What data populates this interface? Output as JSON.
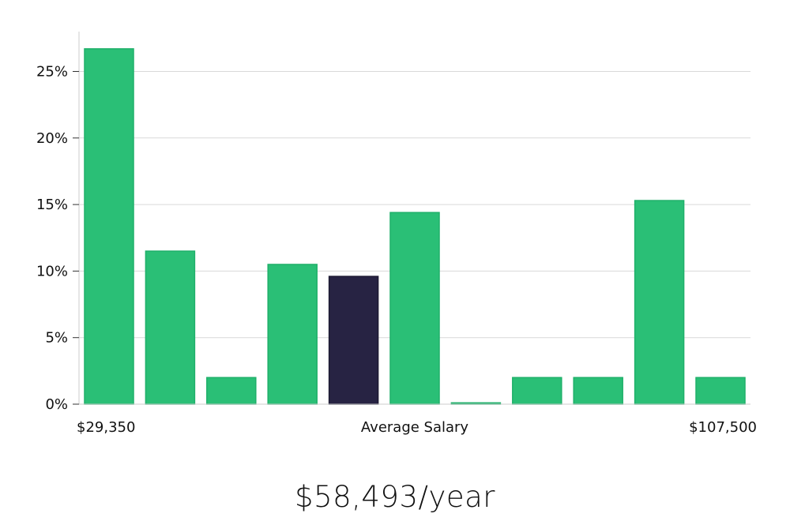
{
  "chart_data": {
    "type": "bar",
    "title": "",
    "xlabel": "Average Salary",
    "ylabel": "",
    "x_range_labels": {
      "min": "$29,350",
      "max": "$107,500"
    },
    "ylim": [
      0,
      28
    ],
    "yticks": [
      0,
      5,
      10,
      15,
      20,
      25
    ],
    "ytick_labels": [
      "0%",
      "5%",
      "10%",
      "15%",
      "20%",
      "25%"
    ],
    "grid": true,
    "values": [
      26.7,
      11.5,
      2.0,
      10.5,
      9.6,
      14.4,
      0.1,
      2.0,
      2.0,
      15.3,
      2.0
    ],
    "highlight_index": 4,
    "colors": {
      "bar": "#2abf76",
      "bar_edge": "#1fb06a",
      "highlight": "#272343",
      "grid": "#d9d9d9",
      "axis": "#cccccc"
    }
  },
  "summary": {
    "salary_label": "$58,493/year"
  }
}
